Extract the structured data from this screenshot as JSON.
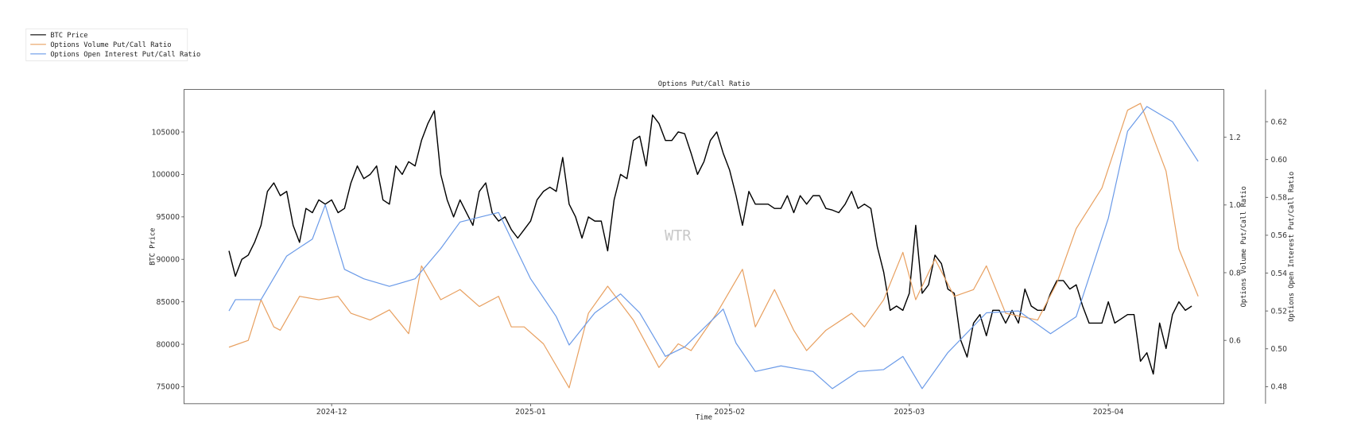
{
  "chart_data": {
    "type": "line",
    "title": "Options Put/Call Ratio",
    "xlabel": "Time",
    "ylabel_left": "BTC Price",
    "ylabel_right1": "Options Volume Put/Call Ratio",
    "ylabel_right2": "Options Open Interest Put/Call Ratio",
    "watermark": "WTR",
    "legend_placement": "top-left (outside)",
    "grid": false,
    "xlim": [
      "2024-11-08",
      "2025-04-19"
    ],
    "x_ticks": [
      "2024-12",
      "2025-01",
      "2025-02",
      "2025-03",
      "2025-04"
    ],
    "ylim_left": [
      73000,
      110000
    ],
    "y_ticks_left": [
      75000,
      80000,
      85000,
      90000,
      95000,
      100000,
      105000
    ],
    "ylim_right1": [
      0.413,
      1.341
    ],
    "y_ticks_right1": [
      0.6,
      0.8,
      1.0,
      1.2
    ],
    "ylim_right2": [
      0.471,
      0.637
    ],
    "y_ticks_right2": [
      0.48,
      0.5,
      0.52,
      0.54,
      0.56,
      0.58,
      0.6,
      0.62
    ],
    "series": [
      {
        "name": "BTC Price",
        "axis": "left",
        "color": "#000000",
        "start_date": "2024-11-15",
        "daily_values": [
          91000,
          88000,
          90000,
          90500,
          92000,
          94000,
          98000,
          99000,
          97500,
          98000,
          94000,
          92000,
          96000,
          95500,
          97000,
          96500,
          97000,
          95500,
          96000,
          99000,
          101000,
          99500,
          100000,
          101000,
          97000,
          96500,
          101000,
          100000,
          101500,
          101000,
          104000,
          106000,
          107500,
          100000,
          97000,
          95000,
          97000,
          95500,
          94000,
          98000,
          99000,
          95500,
          94500,
          95000,
          93500,
          92500,
          93500,
          94500,
          97000,
          98000,
          98500,
          98000,
          102000,
          96500,
          95000,
          92500,
          95000,
          94500,
          94500,
          91000,
          97000,
          100000,
          99500,
          104000,
          104500,
          101000,
          107000,
          106000,
          104000,
          104000,
          105000,
          104800,
          102500,
          100000,
          101500,
          104000,
          105000,
          102500,
          100500,
          97500,
          94000,
          98000,
          96500,
          96500,
          96500,
          96000,
          96000,
          97500,
          95500,
          97500,
          96500,
          97500,
          97500,
          96000,
          95800,
          95500,
          96500,
          98000,
          96000,
          96500,
          96000,
          91500,
          88500,
          84000,
          84500,
          84000,
          86000,
          94000,
          86000,
          87000,
          90500,
          89500,
          86500,
          86000,
          80500,
          78500,
          82500,
          83500,
          81000,
          84000,
          84000,
          82500,
          84000,
          82500,
          86500,
          84500,
          84000,
          84000,
          86000,
          87500,
          87500,
          86500,
          87000,
          84500,
          82500,
          82500,
          82500,
          85000,
          82500,
          83000,
          83500,
          83500,
          78000,
          79000,
          76500,
          82500,
          79500,
          83500,
          85000,
          84000,
          84500
        ]
      },
      {
        "name": "Options Volume Put/Call Ratio",
        "axis": "right1",
        "color": "#e8a060",
        "points": [
          [
            "2024-11-15",
            0.58
          ],
          [
            "2024-11-18",
            0.6
          ],
          [
            "2024-11-20",
            0.72
          ],
          [
            "2024-11-22",
            0.64
          ],
          [
            "2024-11-23",
            0.63
          ],
          [
            "2024-11-26",
            0.73
          ],
          [
            "2024-11-29",
            0.72
          ],
          [
            "2024-12-02",
            0.73
          ],
          [
            "2024-12-04",
            0.68
          ],
          [
            "2024-12-07",
            0.66
          ],
          [
            "2024-12-10",
            0.69
          ],
          [
            "2024-12-13",
            0.62
          ],
          [
            "2024-12-15",
            0.82
          ],
          [
            "2024-12-18",
            0.72
          ],
          [
            "2024-12-21",
            0.75
          ],
          [
            "2024-12-24",
            0.7
          ],
          [
            "2024-12-27",
            0.73
          ],
          [
            "2024-12-29",
            0.64
          ],
          [
            "2024-12-31",
            0.64
          ],
          [
            "2025-01-03",
            0.59
          ],
          [
            "2025-01-07",
            0.46
          ],
          [
            "2025-01-10",
            0.68
          ],
          [
            "2025-01-13",
            0.76
          ],
          [
            "2025-01-17",
            0.66
          ],
          [
            "2025-01-21",
            0.52
          ],
          [
            "2025-01-24",
            0.59
          ],
          [
            "2025-01-26",
            0.57
          ],
          [
            "2025-01-30",
            0.68
          ],
          [
            "2025-02-03",
            0.81
          ],
          [
            "2025-02-05",
            0.64
          ],
          [
            "2025-02-08",
            0.75
          ],
          [
            "2025-02-11",
            0.63
          ],
          [
            "2025-02-13",
            0.57
          ],
          [
            "2025-02-16",
            0.63
          ],
          [
            "2025-02-20",
            0.68
          ],
          [
            "2025-02-22",
            0.64
          ],
          [
            "2025-02-25",
            0.72
          ],
          [
            "2025-02-28",
            0.86
          ],
          [
            "2025-03-02",
            0.72
          ],
          [
            "2025-03-03",
            0.76
          ],
          [
            "2025-03-05",
            0.84
          ],
          [
            "2025-03-08",
            0.73
          ],
          [
            "2025-03-11",
            0.75
          ],
          [
            "2025-03-13",
            0.82
          ],
          [
            "2025-03-16",
            0.68
          ],
          [
            "2025-03-21",
            0.66
          ],
          [
            "2025-03-24",
            0.77
          ],
          [
            "2025-03-27",
            0.93
          ],
          [
            "2025-03-31",
            1.05
          ],
          [
            "2025-04-04",
            1.28
          ],
          [
            "2025-04-06",
            1.3
          ],
          [
            "2025-04-10",
            1.1
          ],
          [
            "2025-04-12",
            0.87
          ],
          [
            "2025-04-15",
            0.73
          ]
        ]
      },
      {
        "name": "Options Open Interest Put/Call Ratio",
        "axis": "right2",
        "color": "#6a9ae8",
        "points": [
          [
            "2024-11-15",
            0.52
          ],
          [
            "2024-11-16",
            0.526
          ],
          [
            "2024-11-20",
            0.526
          ],
          [
            "2024-11-24",
            0.549
          ],
          [
            "2024-11-28",
            0.558
          ],
          [
            "2024-11-30",
            0.576
          ],
          [
            "2024-12-03",
            0.542
          ],
          [
            "2024-12-06",
            0.537
          ],
          [
            "2024-12-10",
            0.533
          ],
          [
            "2024-12-14",
            0.537
          ],
          [
            "2024-12-18",
            0.553
          ],
          [
            "2024-12-21",
            0.567
          ],
          [
            "2024-12-27",
            0.572
          ],
          [
            "2025-01-01",
            0.537
          ],
          [
            "2025-01-05",
            0.517
          ],
          [
            "2025-01-07",
            0.502
          ],
          [
            "2025-01-11",
            0.519
          ],
          [
            "2025-01-15",
            0.529
          ],
          [
            "2025-01-18",
            0.519
          ],
          [
            "2025-01-22",
            0.496
          ],
          [
            "2025-01-25",
            0.501
          ],
          [
            "2025-01-31",
            0.521
          ],
          [
            "2025-02-02",
            0.503
          ],
          [
            "2025-02-05",
            0.488
          ],
          [
            "2025-02-09",
            0.491
          ],
          [
            "2025-02-14",
            0.488
          ],
          [
            "2025-02-17",
            0.479
          ],
          [
            "2025-02-21",
            0.488
          ],
          [
            "2025-02-25",
            0.489
          ],
          [
            "2025-02-28",
            0.496
          ],
          [
            "2025-03-03",
            0.479
          ],
          [
            "2025-03-07",
            0.498
          ],
          [
            "2025-03-13",
            0.519
          ],
          [
            "2025-03-18",
            0.52
          ],
          [
            "2025-03-23",
            0.508
          ],
          [
            "2025-03-27",
            0.517
          ],
          [
            "2025-04-01",
            0.569
          ],
          [
            "2025-04-04",
            0.615
          ],
          [
            "2025-04-07",
            0.628
          ],
          [
            "2025-04-11",
            0.62
          ],
          [
            "2025-04-15",
            0.599
          ]
        ]
      }
    ]
  }
}
